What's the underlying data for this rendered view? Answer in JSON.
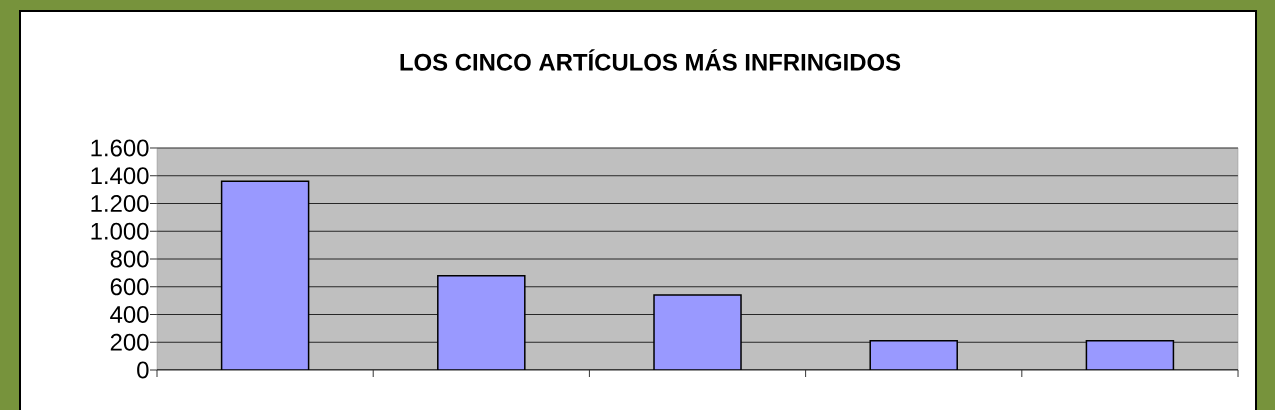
{
  "chart_data": {
    "type": "bar",
    "title": "LOS CINCO ARTÍCULOS MÁS INFRINGIDOS",
    "categories": [
      null,
      null,
      null,
      null,
      null
    ],
    "values": [
      1360,
      680,
      540,
      210,
      210
    ],
    "color": "#9999ff",
    "ylim": [
      0,
      1600
    ],
    "yticks": [
      0,
      200,
      400,
      600,
      800,
      {
        "value": 1000,
        "label": "1.000"
      },
      {
        "value": 1200,
        "label": "1.200"
      },
      {
        "value": 1400,
        "label": "1.400"
      },
      {
        "value": 1600,
        "label": "1.600"
      }
    ],
    "grid": "y"
  }
}
